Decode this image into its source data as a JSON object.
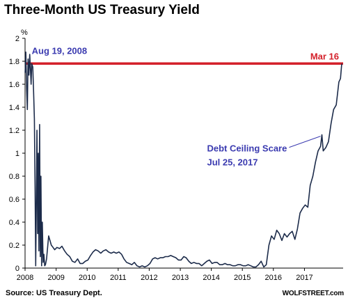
{
  "title": "Three-Month US Treasury Yield",
  "source": "Source: US Treasury Dept.",
  "brand": "WOLFSTREET.com",
  "colors": {
    "series": "#1c2b4a",
    "reference_line": "#d4202a",
    "annotation": "#3b3bb0"
  },
  "chart_data": {
    "type": "line",
    "ylabel": "%",
    "ylim": [
      0,
      2
    ],
    "yticks": [
      "0",
      "0.2",
      "0.4",
      "0.6",
      "0.8",
      "1",
      "1.2",
      "1.4",
      "1.6",
      "1.8",
      "2"
    ],
    "xticks": [
      "2008",
      "2009",
      "2010",
      "2011",
      "2012",
      "2013",
      "2014",
      "2015",
      "2016",
      "2017"
    ],
    "xlim": [
      "2008-01-01",
      "2018-04-01"
    ],
    "grid": false,
    "series": [
      {
        "points": [
          [
            "2008-01-02",
            1.7
          ],
          [
            "2008-01-10",
            1.88
          ],
          [
            "2008-01-20",
            1.55
          ],
          [
            "2008-01-28",
            1.38
          ],
          [
            "2008-02-05",
            1.82
          ],
          [
            "2008-02-15",
            1.68
          ],
          [
            "2008-02-25",
            1.86
          ],
          [
            "2008-03-05",
            1.72
          ],
          [
            "2008-03-12",
            1.6
          ],
          [
            "2008-03-20",
            1.78
          ],
          [
            "2008-04-01",
            1.75
          ],
          [
            "2008-04-10",
            1.55
          ],
          [
            "2008-04-20",
            1.3
          ],
          [
            "2008-04-28",
            0.7
          ],
          [
            "2008-05-05",
            0.02
          ],
          [
            "2008-05-12",
            0.5
          ],
          [
            "2008-05-20",
            1.2
          ],
          [
            "2008-05-28",
            0.3
          ],
          [
            "2008-06-05",
            1.0
          ],
          [
            "2008-06-12",
            0.15
          ],
          [
            "2008-06-20",
            1.25
          ],
          [
            "2008-06-28",
            0.1
          ],
          [
            "2008-07-06",
            0.8
          ],
          [
            "2008-07-14",
            0.02
          ],
          [
            "2008-07-22",
            0.4
          ],
          [
            "2008-08-01",
            0.05
          ],
          [
            "2008-08-10",
            0.12
          ],
          [
            "2008-08-19",
            0.02
          ],
          [
            "2008-08-28",
            0.03
          ],
          [
            "2008-09-10",
            0.08
          ],
          [
            "2008-09-25",
            0.2
          ],
          [
            "2008-10-05",
            0.28
          ],
          [
            "2008-10-20",
            0.24
          ],
          [
            "2008-11-05",
            0.2
          ],
          [
            "2008-11-25",
            0.18
          ],
          [
            "2008-12-15",
            0.16
          ],
          [
            "2009-01-10",
            0.18
          ],
          [
            "2009-02-10",
            0.17
          ],
          [
            "2009-03-10",
            0.19
          ],
          [
            "2009-04-10",
            0.15
          ],
          [
            "2009-05-10",
            0.12
          ],
          [
            "2009-06-10",
            0.1
          ],
          [
            "2009-07-10",
            0.06
          ],
          [
            "2009-08-10",
            0.05
          ],
          [
            "2009-09-10",
            0.08
          ],
          [
            "2009-10-10",
            0.04
          ],
          [
            "2009-11-10",
            0.04
          ],
          [
            "2009-12-10",
            0.06
          ],
          [
            "2010-01-10",
            0.07
          ],
          [
            "2010-02-10",
            0.11
          ],
          [
            "2010-03-10",
            0.14
          ],
          [
            "2010-04-10",
            0.16
          ],
          [
            "2010-05-10",
            0.15
          ],
          [
            "2010-06-10",
            0.13
          ],
          [
            "2010-07-10",
            0.15
          ],
          [
            "2010-08-10",
            0.16
          ],
          [
            "2010-09-10",
            0.14
          ],
          [
            "2010-10-10",
            0.13
          ],
          [
            "2010-11-10",
            0.14
          ],
          [
            "2010-12-10",
            0.13
          ],
          [
            "2011-01-10",
            0.14
          ],
          [
            "2011-02-10",
            0.12
          ],
          [
            "2011-03-10",
            0.08
          ],
          [
            "2011-04-10",
            0.05
          ],
          [
            "2011-05-10",
            0.04
          ],
          [
            "2011-06-10",
            0.03
          ],
          [
            "2011-07-10",
            0.05
          ],
          [
            "2011-08-10",
            0.02
          ],
          [
            "2011-09-10",
            0.01
          ],
          [
            "2011-10-10",
            0.02
          ],
          [
            "2011-11-10",
            0.01
          ],
          [
            "2011-12-10",
            0.02
          ],
          [
            "2012-01-10",
            0.04
          ],
          [
            "2012-02-10",
            0.08
          ],
          [
            "2012-03-10",
            0.09
          ],
          [
            "2012-04-10",
            0.08
          ],
          [
            "2012-05-10",
            0.09
          ],
          [
            "2012-06-10",
            0.09
          ],
          [
            "2012-07-10",
            0.1
          ],
          [
            "2012-08-10",
            0.1
          ],
          [
            "2012-09-10",
            0.11
          ],
          [
            "2012-10-10",
            0.1
          ],
          [
            "2012-11-10",
            0.09
          ],
          [
            "2012-12-10",
            0.07
          ],
          [
            "2013-01-10",
            0.07
          ],
          [
            "2013-02-10",
            0.1
          ],
          [
            "2013-03-10",
            0.09
          ],
          [
            "2013-04-10",
            0.06
          ],
          [
            "2013-05-10",
            0.04
          ],
          [
            "2013-06-10",
            0.05
          ],
          [
            "2013-07-10",
            0.04
          ],
          [
            "2013-08-10",
            0.04
          ],
          [
            "2013-09-10",
            0.02
          ],
          [
            "2013-10-10",
            0.04
          ],
          [
            "2013-11-10",
            0.06
          ],
          [
            "2013-12-10",
            0.07
          ],
          [
            "2014-01-10",
            0.04
          ],
          [
            "2014-02-10",
            0.05
          ],
          [
            "2014-03-10",
            0.05
          ],
          [
            "2014-04-10",
            0.03
          ],
          [
            "2014-05-10",
            0.03
          ],
          [
            "2014-06-10",
            0.04
          ],
          [
            "2014-07-10",
            0.03
          ],
          [
            "2014-08-10",
            0.03
          ],
          [
            "2014-09-10",
            0.02
          ],
          [
            "2014-10-10",
            0.02
          ],
          [
            "2014-11-10",
            0.03
          ],
          [
            "2014-12-10",
            0.03
          ],
          [
            "2015-01-10",
            0.02
          ],
          [
            "2015-02-10",
            0.02
          ],
          [
            "2015-03-10",
            0.03
          ],
          [
            "2015-04-10",
            0.02
          ],
          [
            "2015-05-10",
            0.01
          ],
          [
            "2015-06-10",
            0.01
          ],
          [
            "2015-07-10",
            0.03
          ],
          [
            "2015-08-10",
            0.06
          ],
          [
            "2015-09-10",
            0.01
          ],
          [
            "2015-10-10",
            0.03
          ],
          [
            "2015-11-10",
            0.2
          ],
          [
            "2015-12-10",
            0.28
          ],
          [
            "2016-01-10",
            0.25
          ],
          [
            "2016-02-10",
            0.33
          ],
          [
            "2016-03-10",
            0.3
          ],
          [
            "2016-04-10",
            0.24
          ],
          [
            "2016-05-10",
            0.3
          ],
          [
            "2016-06-10",
            0.27
          ],
          [
            "2016-07-10",
            0.3
          ],
          [
            "2016-08-10",
            0.32
          ],
          [
            "2016-09-10",
            0.25
          ],
          [
            "2016-10-10",
            0.34
          ],
          [
            "2016-11-10",
            0.48
          ],
          [
            "2016-12-10",
            0.52
          ],
          [
            "2017-01-10",
            0.55
          ],
          [
            "2017-02-10",
            0.53
          ],
          [
            "2017-03-10",
            0.72
          ],
          [
            "2017-04-10",
            0.8
          ],
          [
            "2017-05-10",
            0.92
          ],
          [
            "2017-06-10",
            1.02
          ],
          [
            "2017-07-10",
            1.06
          ],
          [
            "2017-07-25",
            1.16
          ],
          [
            "2017-08-10",
            1.02
          ],
          [
            "2017-09-10",
            1.05
          ],
          [
            "2017-10-10",
            1.1
          ],
          [
            "2017-11-10",
            1.26
          ],
          [
            "2017-12-10",
            1.38
          ],
          [
            "2018-01-10",
            1.42
          ],
          [
            "2018-02-10",
            1.62
          ],
          [
            "2018-03-01",
            1.65
          ],
          [
            "2018-03-16",
            1.78
          ]
        ]
      }
    ],
    "reference_line": {
      "y": 1.78
    },
    "annotations": [
      {
        "text": "Aug 19, 2008",
        "x": "2008-03-20",
        "y": 1.78
      },
      {
        "text": "Mar 16",
        "x": "2018-03-16",
        "y": 1.78
      },
      {
        "text": "Debt Ceiling Scare",
        "line2": "Jul 25, 2017",
        "x": "2017-07-25",
        "y": 1.16
      }
    ]
  }
}
